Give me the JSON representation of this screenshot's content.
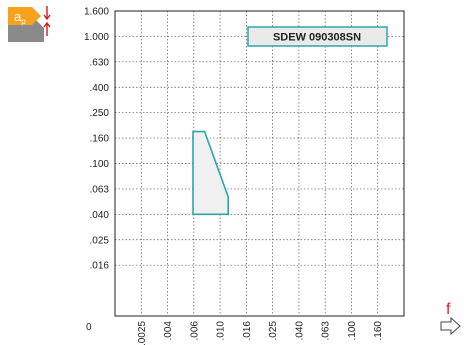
{
  "tool_icon": {
    "name": "depth-of-cut-insert-icon",
    "symbol_main": "a",
    "symbol_sub": "p",
    "insert_color": "#f7a21b",
    "edge_color": "#8a8a8a",
    "arrow_color": "#d01818"
  },
  "feed_indicator": {
    "label": "f",
    "label_color": "#e02020",
    "arrow_icon": "right-arrow-outline-icon"
  },
  "chart_data": {
    "type": "area",
    "title": "",
    "xlabel": "",
    "ylabel": "",
    "x_ticks": [
      ".0025",
      ".004",
      ".006",
      ".010",
      ".016",
      ".025",
      ".040",
      ".063",
      ".100",
      ".160"
    ],
    "y_ticks": [
      "1.600",
      "1.000",
      ".630",
      ".400",
      ".250",
      ".160",
      ".100",
      ".063",
      ".040",
      ".025",
      ".016"
    ],
    "origin_label": "0",
    "x_scale": "log",
    "y_scale": "log",
    "xlim": [
      0.0025,
      0.16
    ],
    "ylim": [
      0.01,
      1.6
    ],
    "grid": true,
    "legend": {
      "label": "SDEW 090308SN",
      "placement": "top-right",
      "fill": "#eaeaea",
      "border": "#2aa8a8"
    },
    "series": [
      {
        "name": "SDEW 090308SN",
        "color": "#2aa8a8",
        "fill": "#f0f0f0",
        "polygon": [
          {
            "x": 0.0059,
            "y": 0.04
          },
          {
            "x": 0.0059,
            "y": 0.18
          },
          {
            "x": 0.0074,
            "y": 0.18
          },
          {
            "x": 0.0117,
            "y": 0.055
          },
          {
            "x": 0.0117,
            "y": 0.04
          }
        ]
      }
    ]
  }
}
